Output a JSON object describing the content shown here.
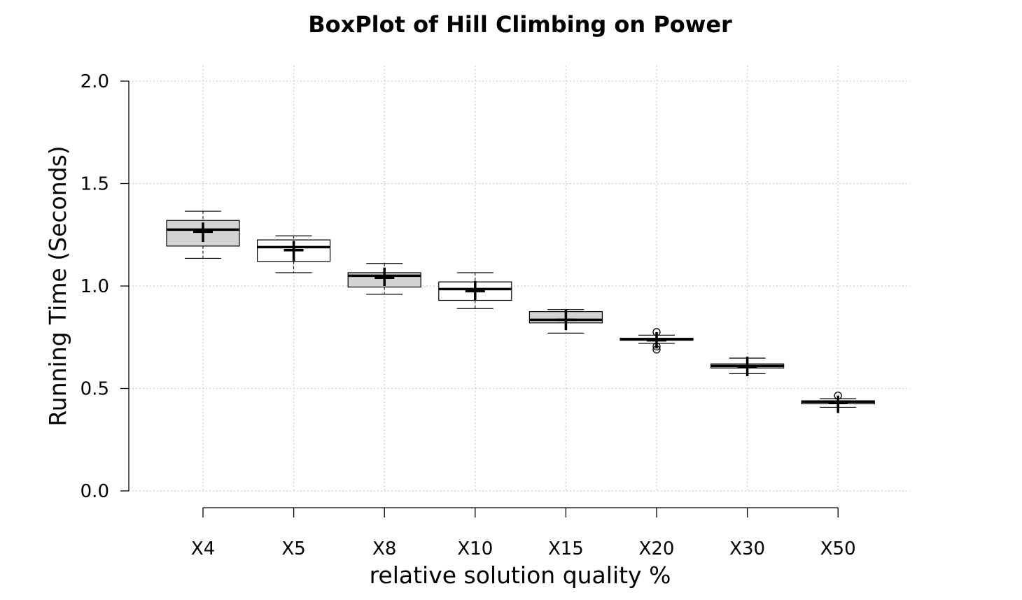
{
  "chart_data": {
    "type": "box",
    "title": "BoxPlot of Hill Climbing on Power",
    "xlabel": "relative solution quality %",
    "ylabel": "Running Time (Seconds)",
    "ylim": [
      0,
      2
    ],
    "yticks": [
      "0.0",
      "0.5",
      "1.0",
      "1.5",
      "2.0"
    ],
    "grid": true,
    "categories": [
      "X4",
      "X5",
      "X8",
      "X10",
      "X15",
      "X20",
      "X30",
      "X50"
    ],
    "box_fill_colors": [
      "#d3d3d3",
      "#ffffff",
      "#d3d3d3",
      "#ffffff",
      "#d3d3d3",
      "#ffffff",
      "#d3d3d3",
      "#ffffff"
    ],
    "series": [
      {
        "category": "X4",
        "whisker_low": 1.135,
        "q1": 1.195,
        "median": 1.275,
        "q3": 1.32,
        "whisker_high": 1.365,
        "mean": 1.265,
        "ci": [
          1.215,
          1.31
        ],
        "outliers": []
      },
      {
        "category": "X5",
        "whisker_low": 1.065,
        "q1": 1.12,
        "median": 1.19,
        "q3": 1.225,
        "whisker_high": 1.245,
        "mean": 1.175,
        "ci": [
          1.12,
          1.22
        ],
        "outliers": []
      },
      {
        "category": "X8",
        "whisker_low": 0.96,
        "q1": 0.995,
        "median": 1.05,
        "q3": 1.065,
        "whisker_high": 1.11,
        "mean": 1.04,
        "ci": [
          1.0,
          1.09
        ],
        "outliers": []
      },
      {
        "category": "X10",
        "whisker_low": 0.89,
        "q1": 0.93,
        "median": 0.985,
        "q3": 1.02,
        "whisker_high": 1.065,
        "mean": 0.975,
        "ci": [
          0.93,
          1.025
        ],
        "outliers": []
      },
      {
        "category": "X15",
        "whisker_low": 0.77,
        "q1": 0.82,
        "median": 0.835,
        "q3": 0.875,
        "whisker_high": 0.885,
        "mean": 0.835,
        "ci": [
          0.785,
          0.885
        ],
        "outliers": []
      },
      {
        "category": "X20",
        "whisker_low": 0.72,
        "q1": 0.735,
        "median": 0.74,
        "q3": 0.745,
        "whisker_high": 0.76,
        "mean": 0.735,
        "ci": [
          0.695,
          0.775
        ],
        "outliers": [
          0.775,
          0.705,
          0.69
        ]
      },
      {
        "category": "X30",
        "whisker_low": 0.572,
        "q1": 0.6,
        "median": 0.61,
        "q3": 0.62,
        "whisker_high": 0.648,
        "mean": 0.605,
        "ci": [
          0.56,
          0.655
        ],
        "outliers": []
      },
      {
        "category": "X50",
        "whisker_low": 0.408,
        "q1": 0.425,
        "median": 0.435,
        "q3": 0.44,
        "whisker_high": 0.45,
        "mean": 0.432,
        "ci": [
          0.38,
          0.465
        ],
        "outliers": [
          0.465
        ]
      }
    ]
  }
}
